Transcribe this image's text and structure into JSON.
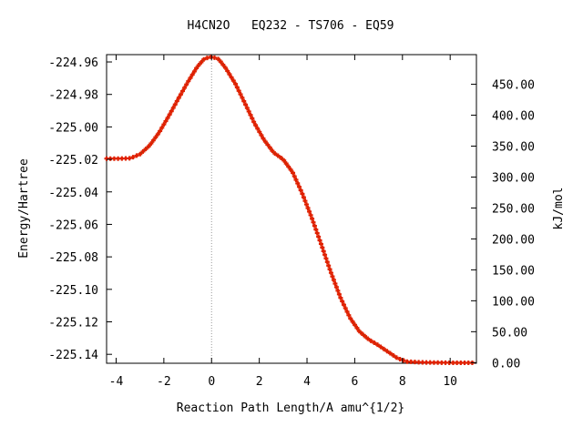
{
  "chart_data": {
    "type": "line",
    "title": "H4CN2O   EQ232 - TS706 - EQ59",
    "xlabel": "Reaction Path Length/A amu^{1/2}",
    "ylabel": "Energy/Hartree",
    "y2label": "kJ/mol",
    "xlim": [
      -4.4,
      11.1
    ],
    "ylim": [
      -225.1455,
      -224.9555
    ],
    "y2lim": [
      -1.0,
      497.9
    ],
    "x_ticks": [
      -4,
      -2,
      0,
      2,
      4,
      6,
      8,
      10
    ],
    "x_tick_labels": [
      "-4",
      "-2",
      "0",
      "2",
      "4",
      "6",
      "8",
      "10"
    ],
    "y_ticks": [
      -224.96,
      -224.98,
      -225.0,
      -225.02,
      -225.04,
      -225.06,
      -225.08,
      -225.1,
      -225.12,
      -225.14
    ],
    "y_tick_labels": [
      "-224.96",
      "-224.98",
      "-225.00",
      "-225.02",
      "-225.04",
      "-225.06",
      "-225.08",
      "-225.10",
      "-225.12",
      "-225.14"
    ],
    "y2_ticks": [
      0,
      50,
      100,
      150,
      200,
      250,
      300,
      350,
      400,
      450
    ],
    "y2_tick_labels": [
      "0.00",
      "50.00",
      "100.00",
      "150.00",
      "200.00",
      "250.00",
      "300.00",
      "350.00",
      "400.00",
      "450.00"
    ],
    "ts_marker_x": 0,
    "grid": false,
    "line_color": "#2e7d32",
    "marker_color": "#e02000",
    "series": [
      {
        "x": [
          -4.4,
          -3.8,
          -3.4,
          -3.0,
          -2.6,
          -2.2,
          -1.8,
          -1.4,
          -1.0,
          -0.6,
          -0.3,
          0.0,
          0.3,
          0.6,
          1.0,
          1.4,
          1.8,
          2.2,
          2.6,
          3.0,
          3.4,
          3.8,
          4.2,
          4.6,
          5.0,
          5.4,
          5.8,
          6.2,
          6.6,
          7.0,
          7.4,
          7.8,
          8.2,
          8.6,
          9.0,
          9.5,
          10.0,
          10.5,
          11.0
        ],
        "y": [
          -225.0195,
          -225.0195,
          -225.0193,
          -225.0168,
          -225.0115,
          -225.0035,
          -224.9935,
          -224.9828,
          -224.9725,
          -224.963,
          -224.958,
          -224.9568,
          -224.9583,
          -224.964,
          -224.9735,
          -224.9855,
          -224.9978,
          -225.008,
          -225.0158,
          -225.02,
          -225.028,
          -225.041,
          -225.056,
          -225.0725,
          -225.0895,
          -225.105,
          -225.1175,
          -225.126,
          -225.131,
          -225.1345,
          -225.1385,
          -225.1425,
          -225.1445,
          -225.1448,
          -225.145,
          -225.1451,
          -225.1452,
          -225.1452,
          -225.1452
        ]
      }
    ]
  }
}
